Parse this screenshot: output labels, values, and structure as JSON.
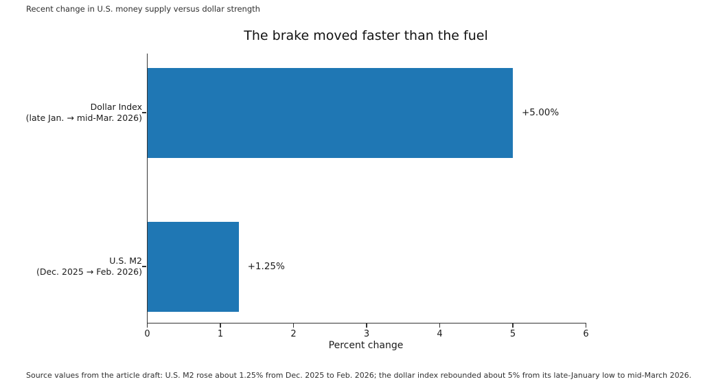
{
  "note": "Recent change in U.S. money supply versus dollar strength",
  "footer": "Source values from the article draft: U.S. M2 rose about 1.25% from Dec. 2025 to Feb. 2026; the dollar index rebounded about 5% from its late-January low to mid-March 2026.",
  "chart_data": {
    "type": "bar",
    "orientation": "horizontal",
    "title": "The brake moved faster than the fuel",
    "categories": [
      [
        "Dollar Index",
        "(late Jan. → mid-Mar. 2026)"
      ],
      [
        "U.S. M2",
        "(Dec. 2025 → Feb. 2026)"
      ]
    ],
    "values": [
      5.0,
      1.25
    ],
    "value_labels": [
      "+5.00%",
      "+1.25%"
    ],
    "xlabel": "Percent change",
    "ylabel": "",
    "xlim": [
      0,
      6
    ],
    "xticks": [
      0,
      1,
      2,
      3,
      4,
      5,
      6
    ],
    "bar_color": "#1f77b4",
    "grid": false,
    "legend": null
  }
}
